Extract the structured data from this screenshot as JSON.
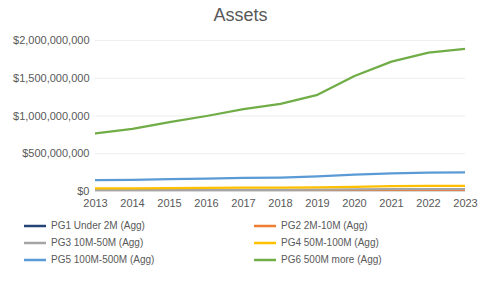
{
  "chart_data": {
    "type": "line",
    "title": "Assets",
    "x": [
      2013,
      2014,
      2015,
      2016,
      2017,
      2018,
      2019,
      2020,
      2021,
      2022,
      2023
    ],
    "xlim": [
      2013,
      2023
    ],
    "xticks": [
      2013,
      2014,
      2015,
      2016,
      2017,
      2018,
      2019,
      2020,
      2021,
      2022,
      2023
    ],
    "ylim": [
      0,
      2000000000
    ],
    "yticks": [
      {
        "value": 0,
        "label": "$0"
      },
      {
        "value": 500000000,
        "label": "$500,000,000"
      },
      {
        "value": 1000000000,
        "label": "$1,000,000,000"
      },
      {
        "value": 1500000000,
        "label": "$1,500,000,000"
      },
      {
        "value": 2000000000,
        "label": "$2,000,000,000"
      }
    ],
    "grid": true,
    "legend": "bottom",
    "series": [
      {
        "name": "PG1 Under 2M (Agg)",
        "color": "#264478",
        "values": [
          1000000,
          1000000,
          1100000,
          1100000,
          1200000,
          1200000,
          1300000,
          1400000,
          1500000,
          1500000,
          1600000
        ]
      },
      {
        "name": "PG2 2M-10M (Agg)",
        "color": "#ED7D31",
        "values": [
          5000000,
          5200000,
          5500000,
          5700000,
          6000000,
          6200000,
          6500000,
          7000000,
          7500000,
          7800000,
          8000000
        ]
      },
      {
        "name": "PG3 10M-50M (Agg)",
        "color": "#A5A5A5",
        "values": [
          18000000,
          19000000,
          20000000,
          21000000,
          22000000,
          23000000,
          24000000,
          27000000,
          30000000,
          31000000,
          32000000
        ]
      },
      {
        "name": "PG4 50M-100M (Agg)",
        "color": "#FFC000",
        "values": [
          40000000,
          42000000,
          45000000,
          47000000,
          50000000,
          52000000,
          55000000,
          62000000,
          70000000,
          73000000,
          75000000
        ]
      },
      {
        "name": "PG5 100M-500M (Agg)",
        "color": "#5B9BD5",
        "values": [
          150000000,
          155000000,
          165000000,
          170000000,
          180000000,
          185000000,
          200000000,
          225000000,
          240000000,
          250000000,
          255000000
        ]
      },
      {
        "name": "PG6 500M more (Agg)",
        "color": "#70AD47",
        "values": [
          770000000,
          830000000,
          920000000,
          1000000000,
          1090000000,
          1160000000,
          1280000000,
          1530000000,
          1720000000,
          1840000000,
          1890000000
        ]
      }
    ]
  }
}
